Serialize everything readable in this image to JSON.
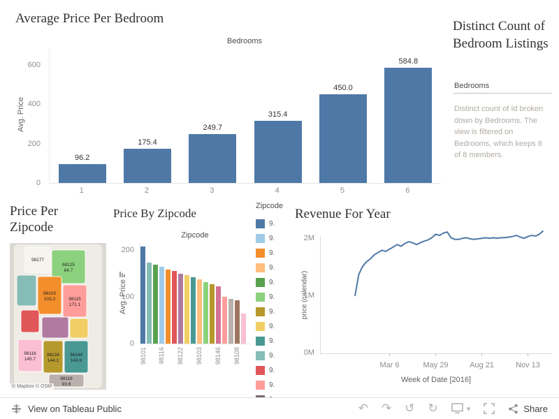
{
  "accent_color": "#4e79a7",
  "panels": {
    "bedroom": {
      "title": "Average Price Per Bedroom",
      "column_header": "Bedrooms",
      "y_axis_label": "Avg. Price"
    },
    "distinct": {
      "title": "Distinct Count of Bedroom Listings",
      "field_label": "Bedrooms",
      "description": "Distinct count of Id broken down by Bedrooms. The view is filtered on Bedrooms, which keeps 6 of 8 members."
    },
    "map": {
      "title": "Price Per Zipcode",
      "attribution": "© Mapbox © OSM",
      "regions": [
        {
          "zip": "98177",
          "value": "",
          "color": "#f6f3ee"
        },
        {
          "zip": "98125",
          "value": "64.7",
          "color": "#8cd17d"
        },
        {
          "zip": "",
          "value": "",
          "color": "#86bcb6"
        },
        {
          "zip": "98103",
          "value": "103.2",
          "color": "#f28e2b"
        },
        {
          "zip": "98115",
          "value": "171.1",
          "color": "#ff9d9a"
        },
        {
          "zip": "",
          "value": "",
          "color": "#b07aa1"
        },
        {
          "zip": "",
          "value": "",
          "color": "#e15759"
        },
        {
          "zip": "",
          "value": "",
          "color": "#f1ce63"
        },
        {
          "zip": "98116",
          "value": "145.7",
          "color": "#fabfd2"
        },
        {
          "zip": "98134",
          "value": "144.1",
          "color": "#b6992d"
        },
        {
          "zip": "98144",
          "value": "143.6",
          "color": "#499894"
        },
        {
          "zip": "98118",
          "value": "93.6",
          "color": "#bab0ac"
        }
      ]
    },
    "zipcode_bars": {
      "title": "Price By Zipcode",
      "column_header": "Zipcode",
      "y_axis_label": "Avg. Price"
    },
    "legend": {
      "title": "Zipcode",
      "items": [
        {
          "label": "9.",
          "color": "#4e79a7"
        },
        {
          "label": "9.",
          "color": "#a0cbe8"
        },
        {
          "label": "9.",
          "color": "#f28e2b"
        },
        {
          "label": "9.",
          "color": "#ffbe7d"
        },
        {
          "label": "9.",
          "color": "#59a14f"
        },
        {
          "label": "9.",
          "color": "#8cd17d"
        },
        {
          "label": "9.",
          "color": "#b6992d"
        },
        {
          "label": "9.",
          "color": "#f1ce63"
        },
        {
          "label": "9.",
          "color": "#499894"
        },
        {
          "label": "9.",
          "color": "#86bcb6"
        },
        {
          "label": "9.",
          "color": "#e15759"
        },
        {
          "label": "9.",
          "color": "#ff9d9a"
        },
        {
          "label": "9.",
          "color": "#79706e"
        }
      ]
    },
    "revenue": {
      "title": "Revenue For Year",
      "y_axis_label": "price (calendar)",
      "x_axis_label": "Week of Date [2016]"
    }
  },
  "toolbar": {
    "view_label": "View on Tableau Public",
    "share_label": "Share",
    "glyphs": {
      "undo": "↶",
      "redo": "↷",
      "revert": "↺",
      "refresh": "↻",
      "caret": "▾"
    }
  },
  "chart_data": [
    {
      "id": "bedroom",
      "type": "bar",
      "title": "Average Price Per Bedroom",
      "column_header": "Bedrooms",
      "ylabel": "Avg. Price",
      "categories": [
        "1",
        "2",
        "3",
        "4",
        "5",
        "6"
      ],
      "values": [
        96.2,
        175.4,
        249.7,
        315.4,
        450.0,
        584.8
      ],
      "data_labels": [
        "96.2",
        "175.4",
        "249.7",
        "315.4",
        "450.0",
        "584.8"
      ],
      "yticks": [
        0,
        200,
        400,
        600
      ],
      "ylim": [
        0,
        650
      ],
      "bar_color": "#4e79a7",
      "grid": false
    },
    {
      "id": "zipcode",
      "type": "bar",
      "title": "Price By Zipcode",
      "column_header": "Zipcode",
      "ylabel": "Avg. Price",
      "yticks": [
        0,
        100,
        200
      ],
      "ylim": [
        0,
        215
      ],
      "values": [
        207,
        173,
        168,
        164,
        159,
        155,
        150,
        146,
        142,
        137,
        131,
        127,
        122,
        100,
        96,
        92,
        64
      ],
      "x_labels": [
        "98101",
        "",
        "",
        "98116",
        "",
        "",
        "98122",
        "",
        "",
        "98103",
        "",
        "",
        "98146",
        "",
        "",
        "98108",
        ""
      ],
      "bar_colors": [
        "#4e79a7",
        "#86bcb6",
        "#59a14f",
        "#a0cbe8",
        "#f28e2b",
        "#e15759",
        "#b07aa1",
        "#f1ce63",
        "#499894",
        "#ffbe7d",
        "#8cd17d",
        "#b6992d",
        "#d37295",
        "#ff9d9a",
        "#bab0ac",
        "#9d7660",
        "#fabfd2"
      ],
      "legend_title": "Zipcode",
      "grid": false
    },
    {
      "id": "revenue",
      "type": "line",
      "title": "Revenue For Year",
      "ylabel": "price (calendar)",
      "xlabel": "Week of Date [2016]",
      "ytick_labels": [
        "0M",
        "1M",
        "2M"
      ],
      "yticks_numeric": [
        0,
        1,
        2
      ],
      "ylim_millions": [
        0,
        2.3
      ],
      "x_ticks": [
        {
          "label": "Mar 6",
          "week": 9
        },
        {
          "label": "May 29",
          "week": 21
        },
        {
          "label": "Aug 21",
          "week": 33
        },
        {
          "label": "Nov 13",
          "week": 45
        }
      ],
      "values_millions": [
        1.0,
        1.38,
        1.52,
        1.6,
        1.65,
        1.72,
        1.76,
        1.8,
        1.78,
        1.82,
        1.86,
        1.9,
        1.87,
        1.92,
        1.95,
        1.93,
        1.9,
        1.93,
        1.96,
        1.98,
        2.02,
        2.08,
        2.06,
        2.1,
        2.12,
        2.02,
        1.99,
        1.99,
        2.01,
        2.02,
        2.0,
        1.99,
        2.0,
        2.01,
        2.02,
        2.01,
        2.02,
        2.01,
        2.02,
        2.02,
        2.03,
        2.04,
        2.06,
        2.03,
        2.01,
        2.04,
        2.06,
        2.05,
        2.08,
        2.14
      ],
      "line_color": "#4e79a7",
      "grid": false
    }
  ]
}
